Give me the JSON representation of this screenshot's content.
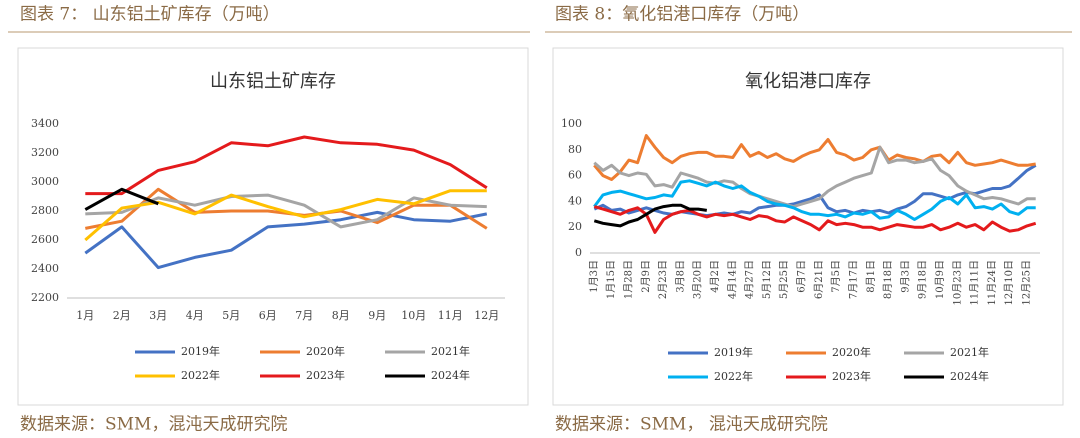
{
  "captions": [
    "图表 7： 山东铝土矿库存（万吨）",
    "图表 8：氧化铝港口库存（万吨）"
  ],
  "sources": [
    "数据来源：SMM，混沌天成研究院",
    "数据来源：SMM， 混沌天成研究院"
  ],
  "chart_data": [
    {
      "type": "line",
      "title": "山东铝土矿库存",
      "grid": false,
      "categories": [
        "1月",
        "2月",
        "3月",
        "4月",
        "5月",
        "6月",
        "7月",
        "8月",
        "9月",
        "10月",
        "11月",
        "12月"
      ],
      "ylim": [
        2200,
        3400
      ],
      "yticks": [
        2200,
        2400,
        2600,
        2800,
        3000,
        3200,
        3400
      ],
      "series": [
        {
          "name": "2019年",
          "color": "#4472c4",
          "values": [
            2510,
            2690,
            2410,
            2480,
            2530,
            2690,
            2710,
            2740,
            2790,
            2740,
            2730,
            2780
          ]
        },
        {
          "name": "2020年",
          "color": "#ed7d31",
          "values": [
            2680,
            2730,
            2950,
            2790,
            2800,
            2800,
            2770,
            2800,
            2720,
            2840,
            2840,
            2680
          ]
        },
        {
          "name": "2021年",
          "color": "#a5a5a5",
          "values": [
            2780,
            2790,
            2890,
            2840,
            2900,
            2910,
            2840,
            2690,
            2740,
            2890,
            2840,
            2830
          ]
        },
        {
          "name": "2022年",
          "color": "#ffc000",
          "values": [
            2600,
            2820,
            2860,
            2780,
            2910,
            2830,
            2760,
            2810,
            2880,
            2850,
            2940,
            2940
          ]
        },
        {
          "name": "2023年",
          "color": "#e41a1c",
          "values": [
            2920,
            2920,
            3080,
            3140,
            3270,
            3250,
            3310,
            3270,
            3260,
            3220,
            3120,
            2960
          ]
        },
        {
          "name": "2024年",
          "color": "#000000",
          "values": [
            2810,
            2950,
            2850,
            null,
            null,
            null,
            null,
            null,
            null,
            null,
            null,
            null
          ]
        }
      ]
    },
    {
      "type": "line",
      "title": "氧化铝港口库存",
      "grid": false,
      "categories": [
        "1月3日",
        null,
        "1月15日",
        null,
        "1月28日",
        null,
        "2月9日",
        null,
        "2月23日",
        null,
        "3月8日",
        null,
        "3月20日",
        null,
        "4月2日",
        null,
        "4月14日",
        null,
        "4月27日",
        null,
        "5月12日",
        null,
        "5月25日",
        null,
        "6月7日",
        null,
        "6月21日",
        null,
        "7月5日",
        null,
        "7月17日",
        null,
        "8月1日",
        null,
        "8月18日",
        null,
        "9月3日",
        null,
        "9月18日",
        null,
        "10月9日",
        null,
        "10月23日",
        null,
        "11月11日",
        null,
        "11月24日",
        null,
        "12月10日",
        null,
        "12月25日",
        null
      ],
      "ylim": [
        0,
        100
      ],
      "yticks": [
        0,
        10,
        20,
        30,
        40,
        50,
        60,
        70,
        80,
        90,
        100
      ],
      "series": [
        {
          "name": "2019年",
          "color": "#4472c4",
          "values": [
            34,
            37,
            33,
            34,
            31,
            33,
            35,
            33,
            31,
            30,
            32,
            31,
            30,
            29,
            30,
            31,
            30,
            32,
            31,
            35,
            36,
            37,
            37,
            38,
            40,
            42,
            45,
            35,
            32,
            33,
            31,
            33,
            32,
            33,
            31,
            34,
            36,
            40,
            46,
            46,
            44,
            42,
            45,
            47,
            46,
            48,
            50,
            50,
            52,
            58,
            64,
            68
          ]
        },
        {
          "name": "2020年",
          "color": "#ed7d31",
          "values": [
            68,
            60,
            57,
            63,
            72,
            70,
            91,
            82,
            74,
            70,
            75,
            77,
            78,
            78,
            75,
            75,
            74,
            84,
            75,
            78,
            74,
            77,
            73,
            71,
            75,
            78,
            80,
            88,
            78,
            76,
            72,
            74,
            80,
            82,
            72,
            76,
            74,
            73,
            71,
            75,
            76,
            70,
            78,
            70,
            68,
            69,
            70,
            72,
            70,
            68,
            68,
            69
          ]
        },
        {
          "name": "2021年",
          "color": "#a5a5a5",
          "values": [
            70,
            64,
            68,
            62,
            60,
            62,
            61,
            52,
            53,
            51,
            62,
            60,
            58,
            55,
            54,
            56,
            55,
            50,
            46,
            44,
            42,
            40,
            38,
            36,
            38,
            40,
            42,
            48,
            52,
            55,
            58,
            60,
            62,
            82,
            70,
            72,
            72,
            70,
            71,
            73,
            64,
            60,
            52,
            48,
            45,
            42,
            43,
            42,
            40,
            38,
            42,
            42
          ]
        },
        {
          "name": "2022年",
          "color": "#00b0f0",
          "values": [
            36,
            45,
            47,
            48,
            46,
            44,
            42,
            43,
            45,
            44,
            55,
            56,
            54,
            52,
            55,
            52,
            50,
            52,
            47,
            44,
            40,
            38,
            37,
            35,
            32,
            30,
            30,
            29,
            30,
            28,
            31,
            30,
            32,
            27,
            28,
            33,
            30,
            26,
            30,
            34,
            40,
            43,
            38,
            45,
            35,
            36,
            34,
            38,
            32,
            30,
            35,
            35
          ]
        },
        {
          "name": "2023年",
          "color": "#e41a1c",
          "values": [
            36,
            34,
            32,
            30,
            33,
            35,
            30,
            16,
            26,
            30,
            32,
            33,
            30,
            28,
            30,
            29,
            30,
            28,
            26,
            29,
            28,
            25,
            24,
            28,
            25,
            22,
            18,
            25,
            22,
            23,
            22,
            20,
            20,
            18,
            20,
            22,
            21,
            20,
            20,
            22,
            18,
            20,
            23,
            20,
            22,
            18,
            24,
            20,
            17,
            18,
            21,
            23
          ]
        },
        {
          "name": "2024年",
          "color": "#000000",
          "values": [
            25,
            23,
            22,
            21,
            24,
            26,
            30,
            34,
            36,
            37,
            37,
            34,
            34,
            33,
            null,
            null,
            null,
            null,
            null,
            null,
            null,
            null,
            null,
            null,
            null,
            null,
            null,
            null,
            null,
            null,
            null,
            null,
            null,
            null,
            null,
            null,
            null,
            null,
            null,
            null,
            null,
            null,
            null,
            null,
            null,
            null,
            null,
            null,
            null,
            null,
            null,
            null
          ]
        }
      ]
    }
  ]
}
